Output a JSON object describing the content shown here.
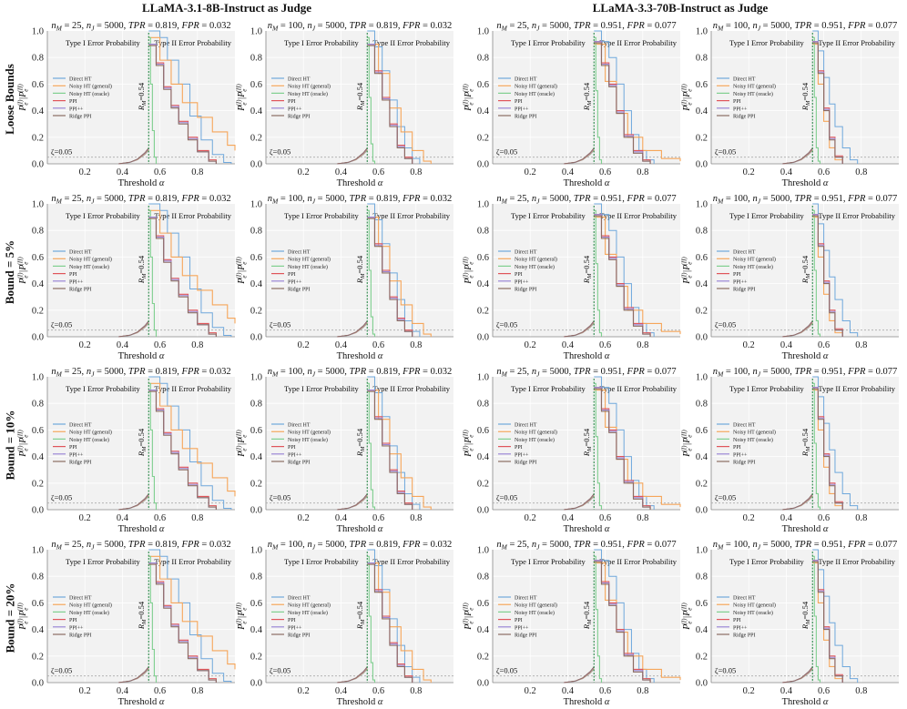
{
  "column_headers": [
    "LLaMA-3.1-8B-Instruct as Judge",
    "LLaMA-3.3-70B-Instruct as Judge"
  ],
  "row_headers": [
    "Loose Bounds",
    "Bound = 5%",
    "Bound = 10%",
    "Bound = 20%"
  ],
  "colors": {
    "panel_bg": "#f2f2f2",
    "direct_ht": "#6fa8dc",
    "noisy_general": "#f6a65a",
    "noisy_oracle": "#7fcf8f",
    "ppi": "#e0555a",
    "ppipp": "#9b87d6",
    "ridge_ppi": "#8c6d62",
    "threshold_line": "#1a7f3a"
  },
  "chart_data": {
    "type": "line",
    "layout": "4 rows x 4 columns grid of step-line panels",
    "xlabel": "Threshold α",
    "ylabel": "P_e^(I) | P_e^(II)",
    "xlim": [
      0,
      1
    ],
    "ylim": [
      0,
      1
    ],
    "x_ticks": [
      "0.2",
      "0.4",
      "0.6",
      "0.8"
    ],
    "y_ticks": [
      "0.0",
      "0.2",
      "0.4",
      "0.6",
      "0.8",
      "1.0"
    ],
    "region_labels": [
      "Type I Error Probability",
      "Type II Error Probability"
    ],
    "vline_label": "R_M=0.54",
    "vline_x": 0.54,
    "zeta_label": "ζ=0.05",
    "zeta": 0.05,
    "legend": [
      "Direct HT",
      "Noisy HT (general)",
      "Noisy HT (oracle)",
      "PPI",
      "PPI++",
      "Ridge PPI"
    ],
    "panel_titles": [
      "n_M = 25, n_J = 5000, TPR = 0.819, FPR = 0.032",
      "n_M = 100, n_J = 5000, TPR = 0.819, FPR = 0.032",
      "n_M = 25, n_J = 5000, TPR = 0.951, FPR = 0.077",
      "n_M = 100, n_J = 5000, TPR = 0.951, FPR = 0.077"
    ],
    "type1_curve": [
      [
        0.38,
        0.0
      ],
      [
        0.44,
        0.01
      ],
      [
        0.48,
        0.03
      ],
      [
        0.52,
        0.07
      ],
      [
        0.54,
        0.1
      ]
    ],
    "series_by_column": [
      [
        {
          "name": "Direct HT",
          "points": [
            [
              0.54,
              1.0
            ],
            [
              0.6,
              0.95
            ],
            [
              0.64,
              0.78
            ],
            [
              0.7,
              0.6
            ],
            [
              0.76,
              0.36
            ],
            [
              0.82,
              0.18
            ],
            [
              0.88,
              0.07
            ],
            [
              0.94,
              0.01
            ],
            [
              0.98,
              0.0
            ]
          ]
        },
        {
          "name": "Noisy HT (general)",
          "points": [
            [
              0.54,
              0.95
            ],
            [
              0.6,
              0.78
            ],
            [
              0.66,
              0.6
            ],
            [
              0.72,
              0.46
            ],
            [
              0.8,
              0.35
            ],
            [
              0.88,
              0.24
            ],
            [
              0.96,
              0.14
            ],
            [
              1.0,
              0.1
            ]
          ]
        },
        {
          "name": "Noisy HT (oracle)",
          "points": [
            [
              0.54,
              0.95
            ],
            [
              0.55,
              0.6
            ],
            [
              0.56,
              0.25
            ],
            [
              0.57,
              0.05
            ],
            [
              0.58,
              0.0
            ]
          ]
        },
        {
          "name": "PPI",
          "points": [
            [
              0.54,
              0.9
            ],
            [
              0.58,
              0.76
            ],
            [
              0.62,
              0.58
            ],
            [
              0.66,
              0.44
            ],
            [
              0.7,
              0.32
            ],
            [
              0.75,
              0.2
            ],
            [
              0.8,
              0.1
            ],
            [
              0.86,
              0.03
            ],
            [
              0.9,
              0.0
            ]
          ]
        },
        {
          "name": "PPI++",
          "points": [
            [
              0.54,
              0.9
            ],
            [
              0.58,
              0.75
            ],
            [
              0.62,
              0.57
            ],
            [
              0.66,
              0.43
            ],
            [
              0.7,
              0.31
            ],
            [
              0.75,
              0.19
            ],
            [
              0.8,
              0.09
            ],
            [
              0.86,
              0.02
            ],
            [
              0.9,
              0.0
            ]
          ]
        },
        {
          "name": "Ridge PPI",
          "points": [
            [
              0.54,
              0.89
            ],
            [
              0.58,
              0.74
            ],
            [
              0.62,
              0.56
            ],
            [
              0.66,
              0.42
            ],
            [
              0.7,
              0.3
            ],
            [
              0.75,
              0.18
            ],
            [
              0.8,
              0.09
            ],
            [
              0.86,
              0.02
            ],
            [
              0.9,
              0.0
            ]
          ]
        }
      ],
      [
        {
          "name": "Direct HT",
          "points": [
            [
              0.54,
              1.0
            ],
            [
              0.58,
              0.88
            ],
            [
              0.62,
              0.7
            ],
            [
              0.66,
              0.48
            ],
            [
              0.7,
              0.28
            ],
            [
              0.74,
              0.12
            ],
            [
              0.78,
              0.04
            ],
            [
              0.82,
              0.0
            ]
          ]
        },
        {
          "name": "Noisy HT (general)",
          "points": [
            [
              0.54,
              0.9
            ],
            [
              0.6,
              0.68
            ],
            [
              0.66,
              0.42
            ],
            [
              0.72,
              0.24
            ],
            [
              0.78,
              0.1
            ],
            [
              0.84,
              0.02
            ],
            [
              0.88,
              0.0
            ]
          ]
        },
        {
          "name": "Noisy HT (oracle)",
          "points": [
            [
              0.54,
              0.95
            ],
            [
              0.55,
              0.5
            ],
            [
              0.56,
              0.15
            ],
            [
              0.57,
              0.02
            ],
            [
              0.58,
              0.0
            ]
          ]
        },
        {
          "name": "PPI",
          "points": [
            [
              0.54,
              0.9
            ],
            [
              0.58,
              0.7
            ],
            [
              0.62,
              0.5
            ],
            [
              0.66,
              0.3
            ],
            [
              0.7,
              0.14
            ],
            [
              0.74,
              0.05
            ],
            [
              0.78,
              0.0
            ]
          ]
        },
        {
          "name": "PPI++",
          "points": [
            [
              0.54,
              0.9
            ],
            [
              0.58,
              0.69
            ],
            [
              0.62,
              0.49
            ],
            [
              0.66,
              0.29
            ],
            [
              0.7,
              0.13
            ],
            [
              0.74,
              0.04
            ],
            [
              0.78,
              0.0
            ]
          ]
        },
        {
          "name": "Ridge PPI",
          "points": [
            [
              0.54,
              0.89
            ],
            [
              0.58,
              0.68
            ],
            [
              0.62,
              0.48
            ],
            [
              0.66,
              0.28
            ],
            [
              0.7,
              0.12
            ],
            [
              0.74,
              0.04
            ],
            [
              0.78,
              0.0
            ]
          ]
        }
      ],
      [
        {
          "name": "Direct HT",
          "points": [
            [
              0.54,
              1.0
            ],
            [
              0.58,
              0.92
            ],
            [
              0.62,
              0.8
            ],
            [
              0.66,
              0.6
            ],
            [
              0.7,
              0.4
            ],
            [
              0.74,
              0.22
            ],
            [
              0.78,
              0.1
            ],
            [
              0.82,
              0.03
            ],
            [
              0.86,
              0.0
            ]
          ]
        },
        {
          "name": "Noisy HT (general)",
          "points": [
            [
              0.54,
              0.9
            ],
            [
              0.6,
              0.62
            ],
            [
              0.66,
              0.38
            ],
            [
              0.72,
              0.2
            ],
            [
              0.8,
              0.1
            ],
            [
              0.9,
              0.04
            ],
            [
              1.0,
              0.02
            ]
          ]
        },
        {
          "name": "Noisy HT (oracle)",
          "points": [
            [
              0.54,
              0.95
            ],
            [
              0.55,
              0.55
            ],
            [
              0.56,
              0.2
            ],
            [
              0.57,
              0.03
            ],
            [
              0.58,
              0.0
            ]
          ]
        },
        {
          "name": "PPI",
          "points": [
            [
              0.54,
              0.92
            ],
            [
              0.58,
              0.76
            ],
            [
              0.62,
              0.6
            ],
            [
              0.66,
              0.4
            ],
            [
              0.7,
              0.22
            ],
            [
              0.75,
              0.1
            ],
            [
              0.8,
              0.03
            ],
            [
              0.84,
              0.0
            ]
          ]
        },
        {
          "name": "PPI++",
          "points": [
            [
              0.54,
              0.92
            ],
            [
              0.58,
              0.75
            ],
            [
              0.62,
              0.59
            ],
            [
              0.66,
              0.39
            ],
            [
              0.7,
              0.21
            ],
            [
              0.75,
              0.09
            ],
            [
              0.8,
              0.02
            ],
            [
              0.84,
              0.0
            ]
          ]
        },
        {
          "name": "Ridge PPI",
          "points": [
            [
              0.54,
              0.91
            ],
            [
              0.58,
              0.74
            ],
            [
              0.62,
              0.58
            ],
            [
              0.66,
              0.38
            ],
            [
              0.7,
              0.2
            ],
            [
              0.75,
              0.08
            ],
            [
              0.8,
              0.02
            ],
            [
              0.84,
              0.0
            ]
          ]
        }
      ],
      [
        {
          "name": "Direct HT",
          "points": [
            [
              0.54,
              1.0
            ],
            [
              0.57,
              0.85
            ],
            [
              0.6,
              0.65
            ],
            [
              0.63,
              0.45
            ],
            [
              0.66,
              0.28
            ],
            [
              0.7,
              0.12
            ],
            [
              0.74,
              0.03
            ],
            [
              0.78,
              0.0
            ]
          ]
        },
        {
          "name": "Noisy HT (general)",
          "points": [
            [
              0.54,
              0.9
            ],
            [
              0.57,
              0.6
            ],
            [
              0.6,
              0.32
            ],
            [
              0.63,
              0.12
            ],
            [
              0.66,
              0.03
            ],
            [
              0.7,
              0.0
            ]
          ]
        },
        {
          "name": "Noisy HT (oracle)",
          "points": [
            [
              0.54,
              0.95
            ],
            [
              0.55,
              0.5
            ],
            [
              0.56,
              0.12
            ],
            [
              0.57,
              0.02
            ],
            [
              0.58,
              0.0
            ]
          ]
        },
        {
          "name": "PPI",
          "points": [
            [
              0.54,
              0.92
            ],
            [
              0.57,
              0.7
            ],
            [
              0.6,
              0.42
            ],
            [
              0.63,
              0.2
            ],
            [
              0.66,
              0.06
            ],
            [
              0.7,
              0.0
            ]
          ]
        },
        {
          "name": "PPI++",
          "points": [
            [
              0.54,
              0.92
            ],
            [
              0.57,
              0.69
            ],
            [
              0.6,
              0.41
            ],
            [
              0.63,
              0.19
            ],
            [
              0.66,
              0.05
            ],
            [
              0.7,
              0.0
            ]
          ]
        },
        {
          "name": "Ridge PPI",
          "points": [
            [
              0.54,
              0.91
            ],
            [
              0.57,
              0.68
            ],
            [
              0.6,
              0.4
            ],
            [
              0.63,
              0.18
            ],
            [
              0.66,
              0.05
            ],
            [
              0.7,
              0.0
            ]
          ]
        }
      ]
    ]
  }
}
